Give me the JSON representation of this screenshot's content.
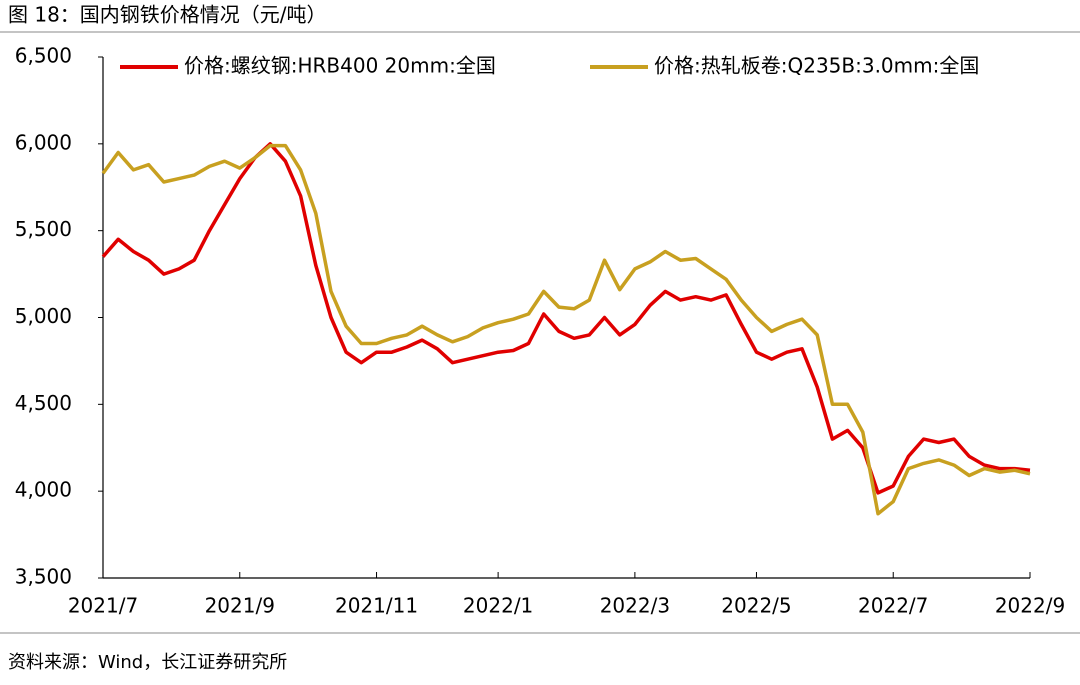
{
  "chart_data": {
    "type": "line",
    "title": "图 18：国内钢铁价格情况（元/吨）",
    "source": "资料来源：Wind，长江证券研究所",
    "categories": [
      "2021/7",
      null,
      null,
      null,
      null,
      null,
      null,
      null,
      null,
      "2021/9",
      null,
      null,
      null,
      null,
      null,
      null,
      null,
      null,
      "2021/11",
      null,
      null,
      null,
      null,
      null,
      null,
      null,
      "2022/1",
      null,
      null,
      null,
      null,
      null,
      null,
      null,
      null,
      "2022/3",
      null,
      null,
      null,
      null,
      null,
      null,
      null,
      "2022/5",
      null,
      null,
      null,
      null,
      null,
      null,
      null,
      null,
      "2022/7",
      null,
      null,
      null,
      null,
      null,
      null,
      null,
      null,
      "2022/9"
    ],
    "series": [
      {
        "name": "价格:螺纹钢:HRB400 20mm:全国",
        "color": "#e00000",
        "values": [
          5350,
          5450,
          5380,
          5330,
          5250,
          5280,
          5330,
          5500,
          5650,
          5800,
          5920,
          6000,
          5900,
          5700,
          5300,
          5000,
          4800,
          4740,
          4800,
          4800,
          4830,
          4870,
          4820,
          4740,
          4760,
          4780,
          4800,
          4810,
          4850,
          5020,
          4920,
          4880,
          4900,
          5000,
          4900,
          4960,
          5070,
          5150,
          5100,
          5120,
          5100,
          5130,
          4960,
          4800,
          4760,
          4800,
          4820,
          4600,
          4300,
          4350,
          4250,
          3990,
          4030,
          4200,
          4300,
          4280,
          4300,
          4200,
          4150,
          4130,
          4130,
          4120
        ]
      },
      {
        "name": "价格:热轧板卷:Q235B:3.0mm:全国",
        "color": "#c8a020",
        "values": [
          5830,
          5950,
          5850,
          5880,
          5780,
          5800,
          5820,
          5870,
          5900,
          5860,
          5920,
          5990,
          5990,
          5850,
          5600,
          5150,
          4950,
          4850,
          4850,
          4880,
          4900,
          4950,
          4900,
          4860,
          4890,
          4940,
          4970,
          4990,
          5020,
          5150,
          5060,
          5050,
          5100,
          5330,
          5160,
          5280,
          5320,
          5380,
          5330,
          5340,
          5280,
          5220,
          5100,
          5000,
          4920,
          4960,
          4990,
          4900,
          4500,
          4500,
          4340,
          3870,
          3940,
          4130,
          4160,
          4180,
          4150,
          4090,
          4130,
          4110,
          4120,
          4100
        ]
      }
    ],
    "ylim": [
      3500,
      6500
    ],
    "yticks": [
      {
        "value": 3500,
        "label": "3,500"
      },
      {
        "value": 4000,
        "label": "4,000"
      },
      {
        "value": 4500,
        "label": "4,500"
      },
      {
        "value": 5000,
        "label": "5,000"
      },
      {
        "value": 5500,
        "label": "5,500"
      },
      {
        "value": 6000,
        "label": "6,000"
      },
      {
        "value": 6500,
        "label": "6,500"
      }
    ],
    "grid": false,
    "legend": "top"
  }
}
